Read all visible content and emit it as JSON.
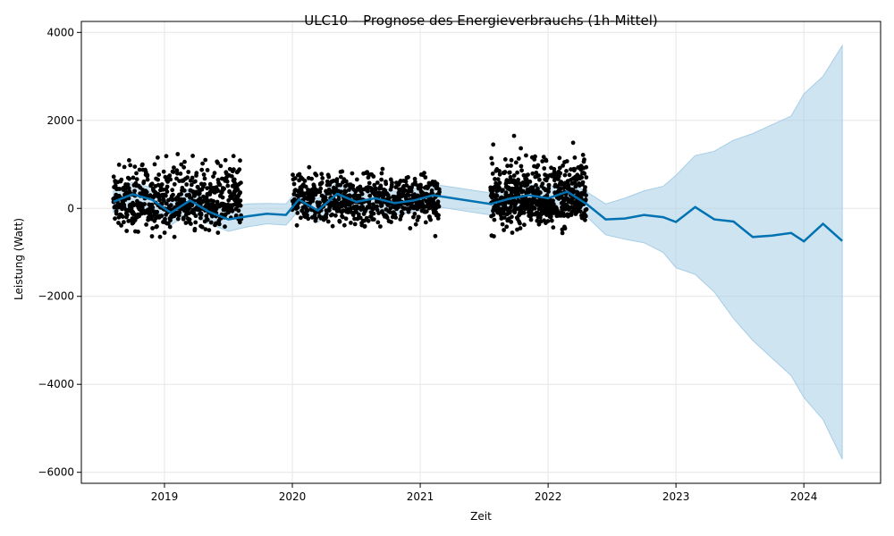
{
  "chart_data": {
    "type": "line",
    "title": "ULC10 – Prognose des Energieverbrauchs (1h-Mittel)",
    "xlabel": "Zeit",
    "ylabel": "Leistung (Watt)",
    "xlim": [
      2018.35,
      2024.6
    ],
    "ylim": [
      -6250,
      4250
    ],
    "x_ticks": [
      2019,
      2020,
      2021,
      2022,
      2023,
      2024
    ],
    "x_tick_labels": [
      "2019",
      "2020",
      "2021",
      "2022",
      "2023",
      "2024"
    ],
    "y_ticks": [
      4000,
      2000,
      0,
      -2000,
      -4000,
      -6000
    ],
    "y_tick_labels": [
      "4000",
      "2000",
      "0",
      "−2000",
      "−4000",
      "−6000"
    ],
    "grid": true,
    "colors": {
      "forecast": "#0072b2",
      "interval": "#a6cde6",
      "observed": "#000000"
    },
    "observed_segments": [
      {
        "x_start": 2018.6,
        "x_end": 2019.6,
        "center": 120,
        "low": -900,
        "high": 1700
      },
      {
        "x_start": 2020.0,
        "x_end": 2021.15,
        "center": 200,
        "low": -800,
        "high": 1300
      },
      {
        "x_start": 2021.55,
        "x_end": 2022.3,
        "center": 200,
        "low": -850,
        "high": 1900
      }
    ],
    "series": [
      {
        "name": "Prognose",
        "x": [
          2018.6,
          2018.75,
          2018.9,
          2019.05,
          2019.2,
          2019.35,
          2019.5,
          2019.65,
          2019.8,
          2019.95,
          2020.05,
          2020.2,
          2020.35,
          2020.5,
          2020.65,
          2020.8,
          2020.95,
          2021.1,
          2021.55,
          2021.7,
          2021.85,
          2022.0,
          2022.15,
          2022.3,
          2022.45,
          2022.6,
          2022.75,
          2022.9,
          2023.0,
          2023.15,
          2023.3,
          2023.45,
          2023.6,
          2023.75,
          2023.9,
          2024.0,
          2024.15,
          2024.3
        ],
        "values": [
          150,
          320,
          200,
          -100,
          180,
          -80,
          -250,
          -180,
          -120,
          -150,
          200,
          -50,
          330,
          150,
          230,
          120,
          180,
          300,
          100,
          220,
          300,
          230,
          380,
          100,
          -250,
          -230,
          -150,
          -200,
          -310,
          30,
          -250,
          -300,
          -650,
          -620,
          -560,
          -750,
          -350,
          -740
        ],
        "lower": [
          -100,
          50,
          -60,
          -380,
          -100,
          -350,
          -520,
          -420,
          -350,
          -380,
          -50,
          -320,
          60,
          -120,
          -40,
          -150,
          -90,
          50,
          -150,
          -20,
          60,
          -10,
          140,
          -180,
          -600,
          -700,
          -780,
          -1000,
          -1350,
          -1500,
          -1900,
          -2500,
          -3000,
          -3400,
          -3800,
          -4300,
          -4800,
          -5700
        ],
        "upper": [
          400,
          590,
          470,
          180,
          460,
          200,
          30,
          100,
          110,
          100,
          450,
          220,
          600,
          420,
          500,
          390,
          450,
          550,
          350,
          460,
          540,
          470,
          620,
          380,
          100,
          230,
          400,
          500,
          750,
          1200,
          1300,
          1550,
          1700,
          1900,
          2100,
          2600,
          3000,
          3700
        ]
      }
    ]
  }
}
